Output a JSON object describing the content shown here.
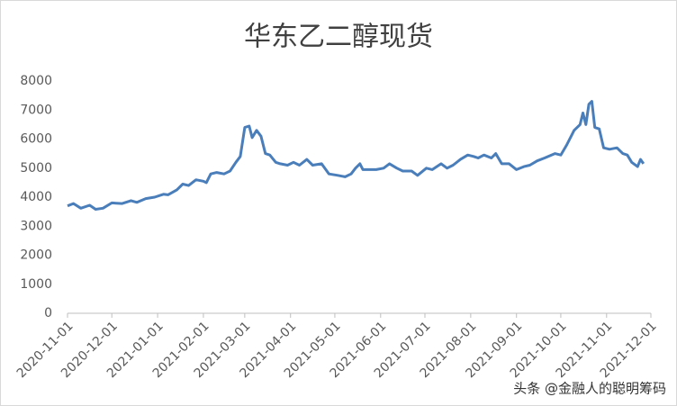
{
  "chart_data": {
    "type": "line",
    "title": "华东乙二醇现货",
    "x": [
      "2020-11-01",
      "2020-11-05",
      "2020-11-10",
      "2020-11-16",
      "2020-11-20",
      "2020-11-25",
      "2020-12-01",
      "2020-12-08",
      "2020-12-14",
      "2020-12-18",
      "2020-12-24",
      "2020-12-30",
      "2021-01-05",
      "2021-01-08",
      "2021-01-14",
      "2021-01-18",
      "2021-01-22",
      "2021-01-27",
      "2021-02-01",
      "2021-02-03",
      "2021-02-06",
      "2021-02-10",
      "2021-02-15",
      "2021-02-19",
      "2021-02-23",
      "2021-02-26",
      "2021-03-01",
      "2021-03-04",
      "2021-03-06",
      "2021-03-09",
      "2021-03-12",
      "2021-03-15",
      "2021-03-18",
      "2021-03-22",
      "2021-03-25",
      "2021-03-30",
      "2021-04-03",
      "2021-04-07",
      "2021-04-12",
      "2021-04-16",
      "2021-04-22",
      "2021-04-27",
      "2021-05-03",
      "2021-05-08",
      "2021-05-12",
      "2021-05-15",
      "2021-05-18",
      "2021-05-20",
      "2021-05-25",
      "2021-05-29",
      "2021-06-03",
      "2021-06-07",
      "2021-06-12",
      "2021-06-16",
      "2021-06-22",
      "2021-06-26",
      "2021-07-02",
      "2021-07-06",
      "2021-07-12",
      "2021-07-16",
      "2021-07-20",
      "2021-07-25",
      "2021-07-30",
      "2021-08-03",
      "2021-08-06",
      "2021-08-10",
      "2021-08-15",
      "2021-08-18",
      "2021-08-22",
      "2021-08-27",
      "2021-09-01",
      "2021-09-06",
      "2021-09-10",
      "2021-09-15",
      "2021-09-20",
      "2021-09-27",
      "2021-10-01",
      "2021-10-05",
      "2021-10-10",
      "2021-10-14",
      "2021-10-16",
      "2021-10-18",
      "2021-10-20",
      "2021-10-22",
      "2021-10-24",
      "2021-10-27",
      "2021-10-30",
      "2021-11-03",
      "2021-11-08",
      "2021-11-12",
      "2021-11-15",
      "2021-11-18",
      "2021-11-22",
      "2021-11-24",
      "2021-11-26"
    ],
    "series": [
      {
        "name": "华东乙二醇现货",
        "color": "#4a7ebb",
        "values": [
          3700,
          3780,
          3620,
          3720,
          3580,
          3620,
          3800,
          3780,
          3880,
          3820,
          3950,
          4000,
          4100,
          4080,
          4250,
          4450,
          4400,
          4600,
          4550,
          4500,
          4800,
          4850,
          4800,
          4900,
          5200,
          5400,
          6400,
          6450,
          6050,
          6300,
          6100,
          5500,
          5450,
          5200,
          5150,
          5100,
          5200,
          5100,
          5300,
          5100,
          5150,
          4800,
          4750,
          4700,
          4800,
          5000,
          5150,
          4950,
          4950,
          4950,
          5000,
          5150,
          5000,
          4900,
          4900,
          4750,
          5000,
          4950,
          5150,
          5000,
          5100,
          5300,
          5450,
          5400,
          5350,
          5450,
          5350,
          5500,
          5150,
          5150,
          4950,
          5050,
          5100,
          5250,
          5350,
          5500,
          5450,
          5800,
          6300,
          6500,
          6900,
          6500,
          7200,
          7300,
          6400,
          6350,
          5700,
          5650,
          5700,
          5500,
          5450,
          5200,
          5050,
          5300,
          5150
        ]
      }
    ],
    "xlim": [
      "2020-11-01",
      "2021-12-01"
    ],
    "xticks": [
      "2020-11-01",
      "2020-12-01",
      "2021-01-01",
      "2021-02-01",
      "2021-03-01",
      "2021-04-01",
      "2021-05-01",
      "2021-06-01",
      "2021-07-01",
      "2021-08-01",
      "2021-09-01",
      "2021-10-01",
      "2021-11-01",
      "2021-12-01"
    ],
    "ylim": [
      0,
      8000
    ],
    "yticks": [
      0,
      1000,
      2000,
      3000,
      4000,
      5000,
      6000,
      7000,
      8000
    ],
    "grid": false,
    "watermark": "头条 @金融人的聪明筹码"
  }
}
